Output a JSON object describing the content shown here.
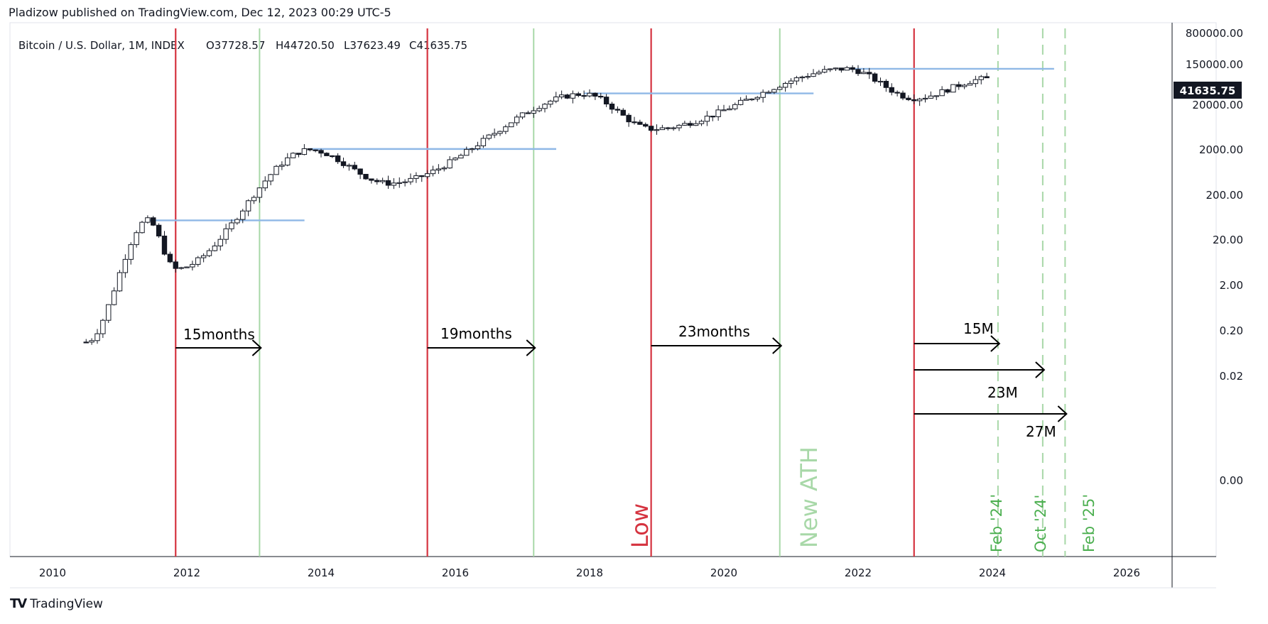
{
  "header": {
    "published": "Pladizow published on TradingView.com, Dec 12, 2023 00:29 UTC-5"
  },
  "footer": {
    "brand": "TradingView",
    "logo_icon": "tradingview-logo-icon"
  },
  "colors": {
    "red": "#d5333f",
    "green": "#a8d8a8",
    "green_dark": "#4caf50",
    "blue": "#8fb8e6",
    "price_box": "#131722"
  },
  "chart_data": {
    "type": "candlestick",
    "symbol_line": "Bitcoin / U.S. Dollar, 1M, INDEX",
    "ohlc": {
      "open": "O37728.57",
      "high": "H44720.50",
      "low": "L37623.49",
      "close": "C41635.75"
    },
    "y_scale": "log",
    "y_ticks": [
      "800000.00",
      "150000.00",
      "20000.00",
      "2000.00",
      "200.00",
      "20.00",
      "2.00",
      "0.20",
      "0.02",
      "0.00"
    ],
    "x_ticks": [
      "2010",
      "2012",
      "2014",
      "2016",
      "2018",
      "2020",
      "2022",
      "2024",
      "2026"
    ],
    "last_price": "41635.75",
    "key_points": [
      {
        "date": "2010-07",
        "price": 0.06
      },
      {
        "date": "2011-06",
        "price": 30
      },
      {
        "date": "2011-11",
        "price": 2.5
      },
      {
        "date": "2013-11",
        "price": 1100
      },
      {
        "date": "2015-01",
        "price": 200
      },
      {
        "date": "2017-12",
        "price": 19000
      },
      {
        "date": "2018-12",
        "price": 3200
      },
      {
        "date": "2021-11",
        "price": 69000
      },
      {
        "date": "2022-11",
        "price": 15500
      },
      {
        "date": "2023-12",
        "price": 41635.75
      }
    ],
    "red_lines": [
      "2011-11",
      "2015-08",
      "2018-12",
      "2022-11"
    ],
    "green_lines": [
      "2013-02",
      "2017-03",
      "2020-11"
    ],
    "dashed_green_lines": [
      "2024-02",
      "2024-10",
      "2025-02"
    ],
    "ath_lines": [
      {
        "from": "2011-06",
        "to": "2013-08",
        "price": 30
      },
      {
        "from": "2013-11",
        "to": "2017-05",
        "price": 1150
      },
      {
        "from": "2017-12",
        "to": "2021-03",
        "price": 19700
      },
      {
        "from": "2021-11",
        "to": "2024-10",
        "price": 69000
      }
    ],
    "arrows": [
      {
        "label": "15months",
        "from": "2011-11",
        "to": "2013-02"
      },
      {
        "label": "19months",
        "from": "2015-08",
        "to": "2017-03"
      },
      {
        "label": "23months",
        "from": "2018-12",
        "to": "2020-11"
      },
      {
        "label": "15M",
        "from": "2022-11",
        "to": "2024-02"
      },
      {
        "label": "23M",
        "from": "2022-11",
        "to": "2024-10"
      },
      {
        "label": "27M",
        "from": "2022-11",
        "to": "2025-02"
      }
    ],
    "vertical_labels": [
      "Low",
      "New ATH",
      "Feb '24'",
      "Oct '24'",
      "Feb '25'"
    ]
  }
}
